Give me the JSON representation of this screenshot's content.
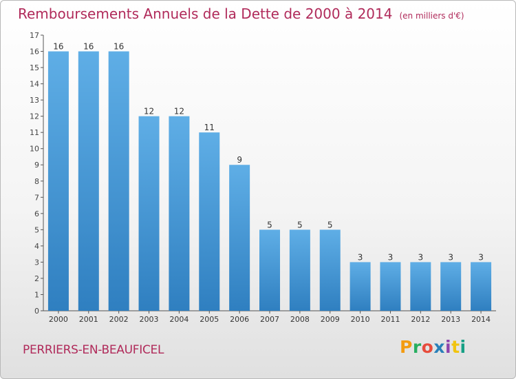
{
  "header": {
    "title": "Remboursements Annuels de la Dette de 2000 à 2014",
    "subtitle": "(en milliers d'€)"
  },
  "footer": {
    "place": "PERRIERS-EN-BEAUFICEL",
    "logo": "Proxiti"
  },
  "colors": {
    "title": "#b02a5a",
    "bar_top": "#5faee6",
    "bar_bottom": "#2f7fc0",
    "logo": [
      "#f39c12",
      "#27ae60",
      "#e74c3c",
      "#2980b9",
      "#8e44ad",
      "#f1c40f",
      "#16a085"
    ]
  },
  "chart_data": {
    "type": "bar",
    "categories": [
      "2000",
      "2001",
      "2002",
      "2003",
      "2004",
      "2005",
      "2006",
      "2007",
      "2008",
      "2009",
      "2010",
      "2011",
      "2012",
      "2013",
      "2014"
    ],
    "values": [
      16,
      16,
      16,
      12,
      12,
      11,
      9,
      5,
      5,
      5,
      3,
      3,
      3,
      3,
      3
    ],
    "ylim": [
      0,
      17
    ],
    "yticks": [
      0,
      1,
      2,
      3,
      4,
      5,
      6,
      7,
      8,
      9,
      10,
      11,
      12,
      13,
      14,
      15,
      16,
      17
    ],
    "grid": false,
    "legend": "none"
  }
}
